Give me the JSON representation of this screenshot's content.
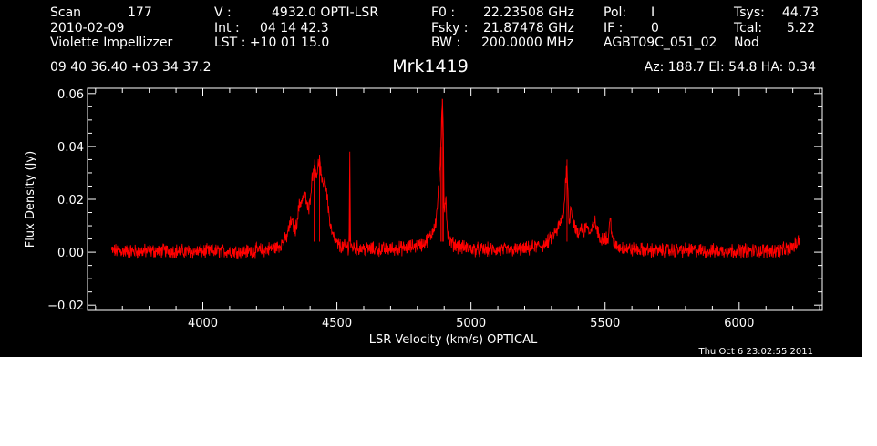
{
  "header": {
    "col1": [
      "Scan",
      "2010-02-09",
      "Violette Impellizzer"
    ],
    "col1b": [
      "177"
    ],
    "col2_labels": [
      "V    :",
      "Int  :",
      "LST : +10 01 15.0"
    ],
    "col2_values": [
      "4932.0 OPTI-LSR",
      "04 14 42.3",
      ""
    ],
    "col3_labels": [
      "F0    :",
      "Fsky :",
      "BW   :"
    ],
    "col3_values": [
      "22.23508 GHz",
      "21.87478 GHz",
      "200.0000 MHz"
    ],
    "col4_labels": [
      "Pol:",
      "IF :",
      "AGBT09C_051_02"
    ],
    "col4_values": [
      "I",
      "0",
      ""
    ],
    "col5_labels": [
      "Tsys:",
      "Tcal:",
      "Nod"
    ],
    "col5_values": [
      "44.73",
      "5.22",
      ""
    ],
    "coords": "09 40 36.40  +03 34 37.2",
    "source": "Mrk1419",
    "azel": "Az: 188.7   El:  54.8   HA:  0.34",
    "timestamp": "Thu Oct  6 23:02:55 2011"
  },
  "colors": {
    "background": "#000000",
    "axes": "#ffffff",
    "spectrum": "#ff0000"
  },
  "chart_data": {
    "type": "line",
    "title": "Mrk1419",
    "xlabel": "LSR Velocity (km/s) OPTICAL",
    "ylabel": "Flux Density (Jy)",
    "xlim": [
      3570,
      6310
    ],
    "ylim": [
      -0.022,
      0.062
    ],
    "xticks": [
      4000,
      4500,
      5000,
      5500,
      6000
    ],
    "xtick_labels": [
      "4000",
      "4500",
      "5000",
      "5500",
      "6000"
    ],
    "yticks": [
      -0.02,
      0.0,
      0.02,
      0.04,
      0.06
    ],
    "ytick_labels": [
      "−0.02",
      "0.00",
      "0.02",
      "0.04",
      "0.06"
    ],
    "grid": false,
    "series": [
      {
        "x": [
          3660,
          3760,
          3860,
          3960,
          4060,
          4160,
          4230,
          4280,
          4310,
          4330,
          4345,
          4360,
          4380,
          4395,
          4405,
          4415,
          4425,
          4435,
          4445,
          4455,
          4465,
          4475,
          4485,
          4500,
          4520,
          4545,
          4548,
          4551,
          4580,
          4650,
          4750,
          4820,
          4850,
          4870,
          4880,
          4888,
          4893,
          4897,
          4900,
          4906,
          4912,
          4920,
          4935,
          4960,
          5020,
          5100,
          5200,
          5280,
          5320,
          5345,
          5358,
          5365,
          5373,
          5381,
          5390,
          5400,
          5410,
          5420,
          5430,
          5445,
          5460,
          5480,
          5500,
          5510,
          5520,
          5530,
          5550,
          5600,
          5700,
          5800,
          5900,
          6000,
          6100,
          6180,
          6215,
          6225
        ],
        "values": [
          0.0005,
          0.0003,
          0.0006,
          0.0002,
          0.0004,
          0.0003,
          0.0008,
          0.002,
          0.005,
          0.012,
          0.008,
          0.018,
          0.022,
          0.015,
          0.026,
          0.033,
          0.03,
          0.035,
          0.025,
          0.028,
          0.02,
          0.01,
          0.006,
          0.003,
          0.002,
          0.002,
          0.038,
          0.002,
          0.0015,
          0.001,
          0.0015,
          0.003,
          0.006,
          0.012,
          0.025,
          0.04,
          0.058,
          0.045,
          0.015,
          0.022,
          0.008,
          0.004,
          0.003,
          0.002,
          0.001,
          0.0008,
          0.001,
          0.003,
          0.008,
          0.014,
          0.035,
          0.01,
          0.018,
          0.012,
          0.009,
          0.006,
          0.01,
          0.007,
          0.011,
          0.006,
          0.012,
          0.005,
          0.006,
          0.004,
          0.013,
          0.003,
          0.002,
          0.001,
          0.0005,
          0.0008,
          0.0004,
          0.0006,
          0.0005,
          0.001,
          0.003,
          0.005
        ]
      }
    ]
  }
}
